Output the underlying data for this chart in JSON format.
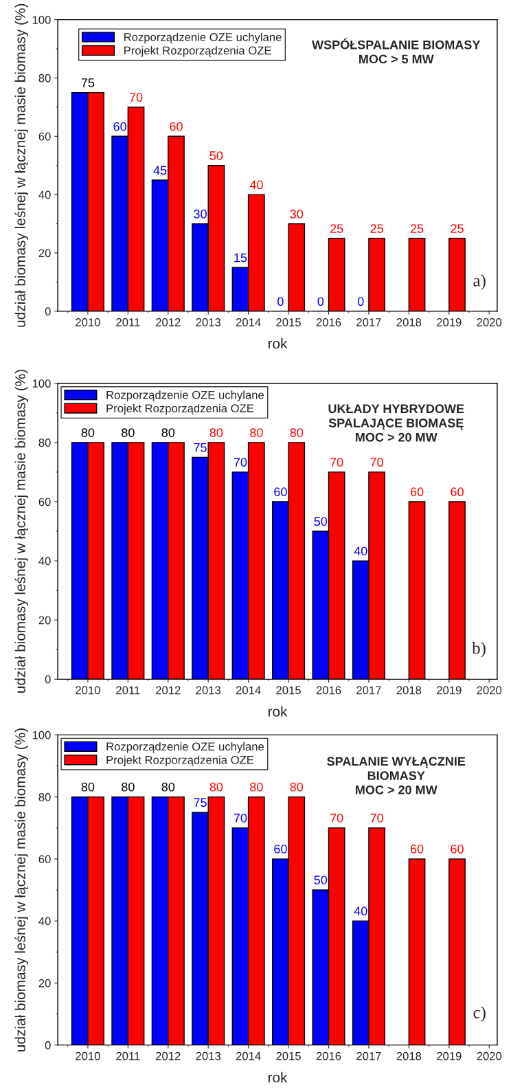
{
  "chart_data": [
    {
      "type": "bar",
      "title": "WSPÓŁSPALANIE BIOMASY\nMOC > 5 MW",
      "xlabel": "rok",
      "ylabel": "udział biomasy leśnej w łącznej masie biomasy (%)",
      "categories": [
        "2010",
        "2011",
        "2012",
        "2013",
        "2014",
        "2015",
        "2016",
        "2017",
        "2018",
        "2019",
        "2020"
      ],
      "series": [
        {
          "name": "Rozporządzenie OZE uchylane",
          "color": "#0000ff",
          "values": [
            75,
            60,
            45,
            30,
            15,
            0,
            0,
            0,
            null,
            null,
            null
          ],
          "value_labels": [
            null,
            "60",
            "45",
            "30",
            "15",
            "0",
            "0",
            "0",
            null,
            null,
            null
          ]
        },
        {
          "name": "Projekt Rozporządzenia OZE",
          "color": "#ff0000",
          "values": [
            75,
            70,
            60,
            50,
            40,
            30,
            25,
            25,
            25,
            25,
            null
          ],
          "value_labels": [
            null,
            "70",
            "60",
            "50",
            "40",
            "30",
            "25",
            "25",
            "25",
            "25",
            null
          ]
        }
      ],
      "ylim": [
        0,
        100
      ],
      "yticks": [
        0,
        20,
        40,
        60,
        80,
        100
      ],
      "legend": "top left",
      "annotations": [
        {
          "text": "75",
          "x": "2010",
          "y": 75
        },
        "a)"
      ]
    },
    {
      "type": "bar",
      "title": "UKŁADY HYBRYDOWE\nSPALAJĄCE BIOMASĘ\nMOC > 20 MW",
      "xlabel": "rok",
      "ylabel": "udział biomasy leśnej w łącznej masie biomasy (%)",
      "categories": [
        "2010",
        "2011",
        "2012",
        "2013",
        "2014",
        "2015",
        "2016",
        "2017",
        "2018",
        "2019",
        "2020"
      ],
      "series": [
        {
          "name": "Rozporządzenie OZE uchylane",
          "color": "#0000ff",
          "values": [
            80,
            80,
            80,
            75,
            70,
            60,
            50,
            40,
            null,
            null,
            null
          ],
          "value_labels": [
            null,
            null,
            null,
            "75",
            "70",
            "60",
            "50",
            "40",
            null,
            null,
            null
          ]
        },
        {
          "name": "Projekt Rozporządzenia OZE",
          "color": "#ff0000",
          "values": [
            80,
            80,
            80,
            80,
            80,
            80,
            70,
            70,
            60,
            60,
            null
          ],
          "value_labels": [
            null,
            null,
            null,
            "80",
            "80",
            "80",
            "70",
            "70",
            "60",
            "60",
            null
          ]
        }
      ],
      "ylim": [
        0,
        100
      ],
      "yticks": [
        0,
        20,
        40,
        60,
        80,
        100
      ],
      "legend": "top left",
      "annotations": [
        {
          "text": "80",
          "x": "2010",
          "y": 80
        },
        {
          "text": "80",
          "x": "2011",
          "y": 80
        },
        {
          "text": "80",
          "x": "2012",
          "y": 80
        },
        "b)"
      ]
    },
    {
      "type": "bar",
      "title": "SPALANIE WYŁĄCZNIE\nBIOMASY\nMOC > 20 MW",
      "xlabel": "rok",
      "ylabel": "udział biomasy leśnej w łącznej masie biomasy (%)",
      "categories": [
        "2010",
        "2011",
        "2012",
        "2013",
        "2014",
        "2015",
        "2016",
        "2017",
        "2018",
        "2019",
        "2020"
      ],
      "series": [
        {
          "name": "Rozporządzenie OZE uchylane",
          "color": "#0000ff",
          "values": [
            80,
            80,
            80,
            75,
            70,
            60,
            50,
            40,
            null,
            null,
            null
          ],
          "value_labels": [
            null,
            null,
            null,
            "75",
            "70",
            "60",
            "50",
            "40",
            null,
            null,
            null
          ]
        },
        {
          "name": "Projekt Rozporządzenia OZE",
          "color": "#ff0000",
          "values": [
            80,
            80,
            80,
            80,
            80,
            80,
            70,
            70,
            60,
            60,
            null
          ],
          "value_labels": [
            null,
            null,
            null,
            "80",
            "80",
            "80",
            "70",
            "70",
            "60",
            "60",
            null
          ]
        }
      ],
      "ylim": [
        0,
        100
      ],
      "yticks": [
        0,
        20,
        40,
        60,
        80,
        100
      ],
      "legend": "top left",
      "annotations": [
        {
          "text": "80",
          "x": "2010",
          "y": 80
        },
        {
          "text": "80",
          "x": "2011",
          "y": 80
        },
        {
          "text": "80",
          "x": "2012",
          "y": 80
        },
        "c)"
      ]
    }
  ]
}
